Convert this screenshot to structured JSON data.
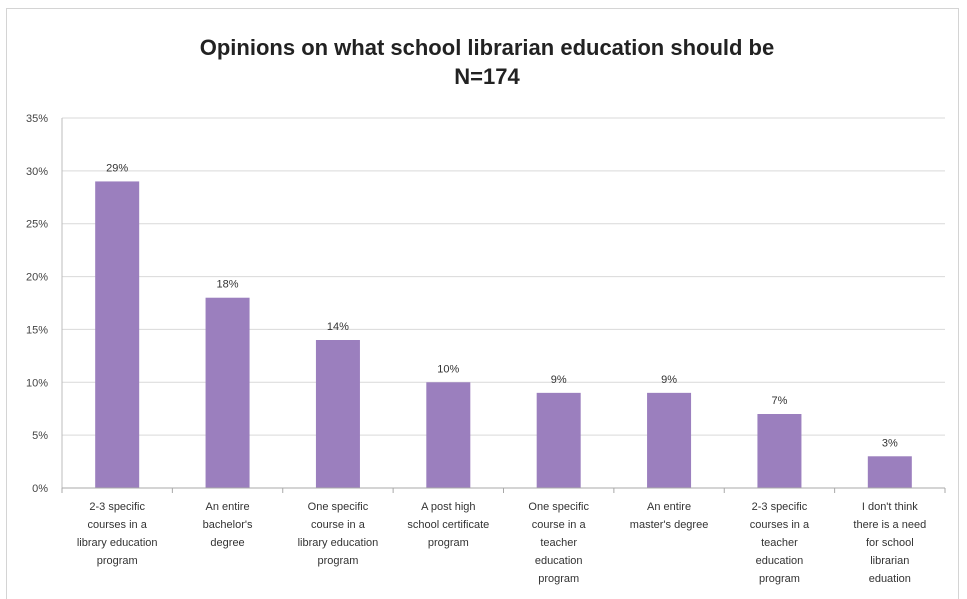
{
  "chart_data": {
    "type": "bar",
    "title": "Opinions on what school librarian education should be",
    "subtitle": "N=174",
    "xlabel": "",
    "ylabel": "",
    "ylim": [
      0,
      35
    ],
    "yticks": [
      0,
      5,
      10,
      15,
      20,
      25,
      30,
      35
    ],
    "ytick_labels": [
      "0%",
      "5%",
      "10%",
      "15%",
      "20%",
      "25%",
      "30%",
      "35%"
    ],
    "grid": true,
    "legend": "none",
    "bar_color": "#9b7fbe",
    "categories": [
      [
        "2-3 specific",
        "courses in a",
        "library education",
        "program"
      ],
      [
        "An entire",
        "bachelor's",
        "degree"
      ],
      [
        "One specific",
        "course in a",
        "library education",
        "program"
      ],
      [
        "A post high",
        "school certificate",
        "program"
      ],
      [
        "One specific",
        "course in a",
        "teacher",
        "education",
        "program"
      ],
      [
        "An entire",
        "master's degree"
      ],
      [
        "2-3 specific",
        "courses in a",
        "teacher",
        "education",
        "program"
      ],
      [
        "I don't think",
        "there is a need",
        "for school",
        "librarian",
        "eduation"
      ]
    ],
    "values": [
      29,
      18,
      14,
      10,
      9,
      9,
      7,
      3
    ],
    "data_labels": [
      "29%",
      "18%",
      "14%",
      "10%",
      "9%",
      "9%",
      "7%",
      "3%"
    ]
  }
}
